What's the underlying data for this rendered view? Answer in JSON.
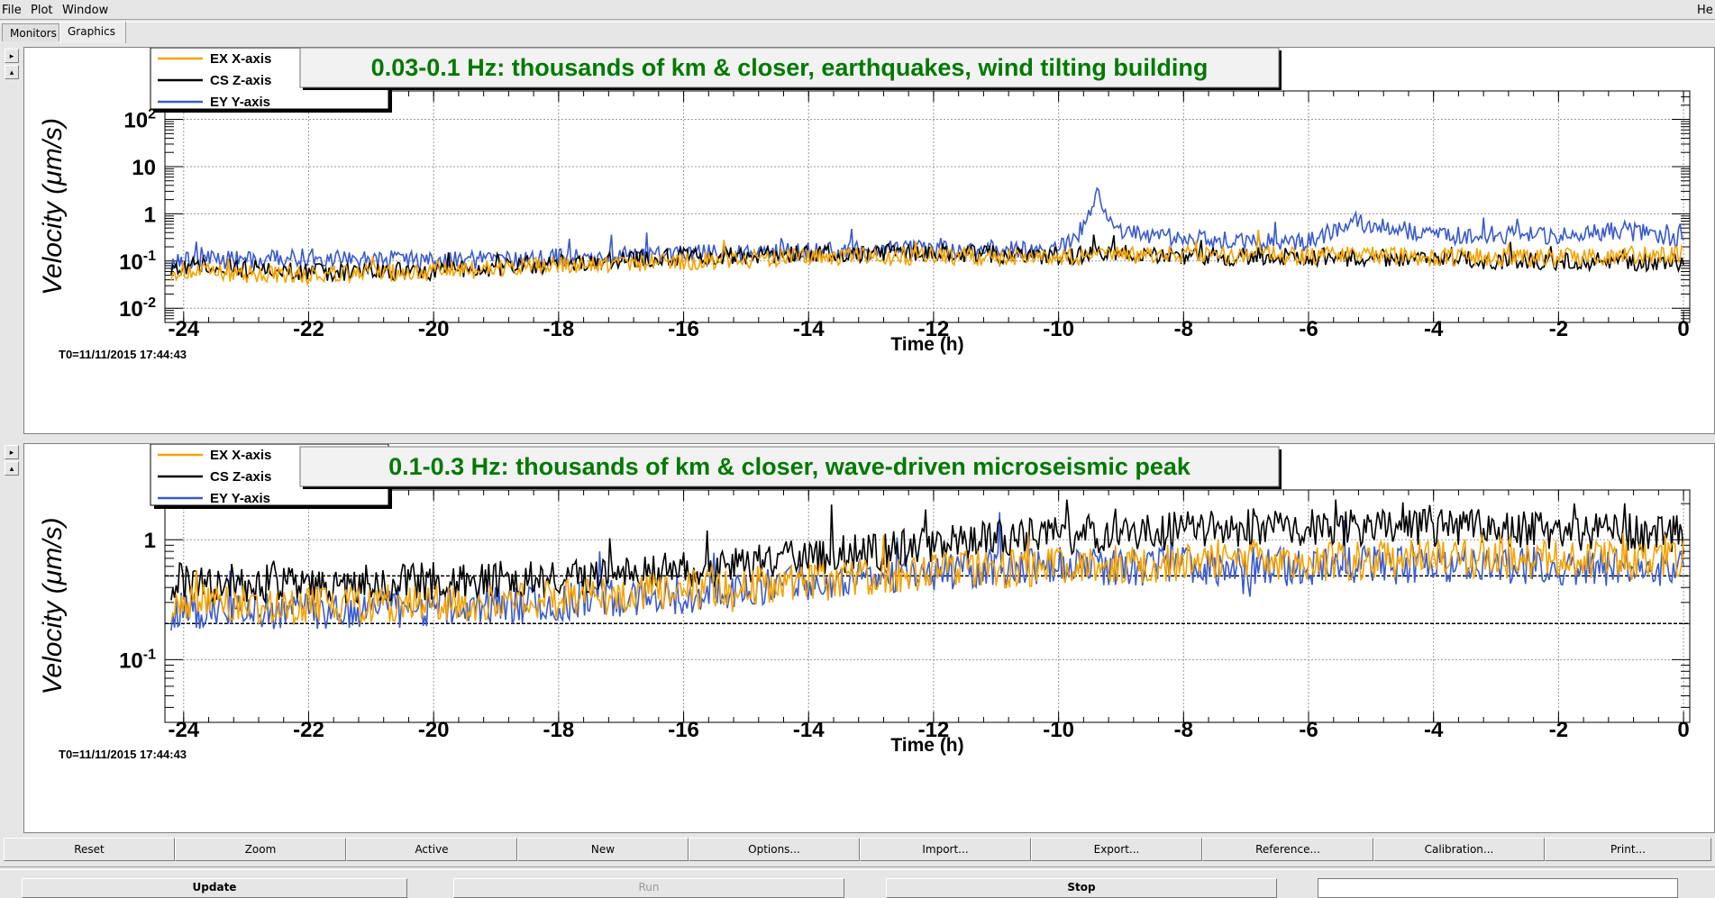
{
  "menu": {
    "file": "File",
    "plot": "Plot",
    "window": "Window",
    "help": "He"
  },
  "tabs": {
    "monitors": "Monitors",
    "graphics": "Graphics"
  },
  "colors": {
    "x_axis": "#f5a300",
    "z_axis": "#000000",
    "y_axis": "#3a5bcc",
    "title_green": "#007a00"
  },
  "plots": [
    {
      "title": "0.03-0.1 Hz: thousands of km & closer, earthquakes, wind tilting building",
      "ylabel": "Velocity  (μm/s)",
      "xlabel": "Time (h)",
      "t0": "T0=11/11/2015 17:44:43",
      "legend": [
        "EX X-axis",
        "CS Z-axis",
        "EY Y-axis"
      ],
      "yticks": [
        {
          "base": "10",
          "exp": "-2"
        },
        {
          "base": "10",
          "exp": "-1"
        },
        {
          "base": "1",
          "exp": ""
        },
        {
          "base": "10",
          "exp": ""
        },
        {
          "base": "10",
          "exp": "2"
        }
      ],
      "xticks": [
        "-24",
        "-22",
        "-20",
        "-18",
        "-16",
        "-14",
        "-12",
        "-10",
        "-8",
        "-6",
        "-4",
        "-2",
        "0"
      ]
    },
    {
      "title": "0.1-0.3 Hz: thousands of km & closer, wave-driven microseismic peak",
      "ylabel": "Velocity  (μm/s)",
      "xlabel": "Time (h)",
      "t0": "T0=11/11/2015 17:44:43",
      "legend": [
        "EX X-axis",
        "CS Z-axis",
        "EY Y-axis"
      ],
      "yticks": [
        {
          "base": "10",
          "exp": "-1"
        },
        {
          "base": "1",
          "exp": ""
        }
      ],
      "xticks": [
        "-24",
        "-22",
        "-20",
        "-18",
        "-16",
        "-14",
        "-12",
        "-10",
        "-8",
        "-6",
        "-4",
        "-2",
        "0"
      ]
    }
  ],
  "chart_data": [
    {
      "type": "line",
      "title": "0.03-0.1 Hz: thousands of km & closer, earthquakes, wind tilting building",
      "xlabel": "Time (h)",
      "ylabel": "Velocity  (μm/s)",
      "xlim": [
        -24.3,
        0.1
      ],
      "ylim": [
        0.005,
        400
      ],
      "yscale": "log",
      "grid": true,
      "legend_position": "top-left",
      "x": [
        -24,
        -22,
        -20,
        -18,
        -16,
        -14,
        -12,
        -10,
        -9.6,
        -9.4,
        -9,
        -8,
        -6,
        -5.3,
        -4,
        -2,
        -1,
        0
      ],
      "series": [
        {
          "name": "EX X-axis",
          "values": [
            0.06,
            0.05,
            0.06,
            0.08,
            0.1,
            0.12,
            0.13,
            0.12,
            0.12,
            0.13,
            0.13,
            0.14,
            0.13,
            0.14,
            0.12,
            0.12,
            0.13,
            0.14
          ]
        },
        {
          "name": "CS Z-axis",
          "values": [
            0.08,
            0.06,
            0.06,
            0.09,
            0.12,
            0.14,
            0.15,
            0.13,
            0.13,
            0.14,
            0.14,
            0.13,
            0.12,
            0.12,
            0.11,
            0.1,
            0.1,
            0.09
          ]
        },
        {
          "name": "EY Y-axis",
          "values": [
            0.1,
            0.12,
            0.1,
            0.12,
            0.14,
            0.16,
            0.18,
            0.17,
            0.5,
            2.5,
            0.4,
            0.3,
            0.25,
            0.7,
            0.35,
            0.35,
            0.45,
            0.3
          ]
        }
      ]
    },
    {
      "type": "line",
      "title": "0.1-0.3 Hz: thousands of km & closer, wave-driven microseismic peak",
      "xlabel": "Time (h)",
      "ylabel": "Velocity  (μm/s)",
      "xlim": [
        -24.3,
        0.1
      ],
      "ylim": [
        0.03,
        2.6
      ],
      "yscale": "log",
      "grid": true,
      "legend_position": "top-left",
      "x": [
        -24,
        -22,
        -20,
        -18,
        -16,
        -14,
        -12,
        -10,
        -8,
        -6,
        -4,
        -2,
        0
      ],
      "series": [
        {
          "name": "EX X-axis",
          "values": [
            0.3,
            0.28,
            0.3,
            0.32,
            0.38,
            0.45,
            0.55,
            0.6,
            0.65,
            0.65,
            0.7,
            0.68,
            0.65
          ]
        },
        {
          "name": "CS Z-axis",
          "values": [
            0.45,
            0.42,
            0.45,
            0.48,
            0.55,
            0.7,
            0.9,
            1.1,
            1.2,
            1.3,
            1.25,
            1.2,
            1.1
          ]
        },
        {
          "name": "EY Y-axis",
          "values": [
            0.25,
            0.25,
            0.27,
            0.3,
            0.35,
            0.45,
            0.55,
            0.6,
            0.6,
            0.6,
            0.62,
            0.6,
            0.6
          ]
        }
      ]
    }
  ],
  "buttons_row1": [
    "Reset",
    "Zoom",
    "Active",
    "New",
    "Options...",
    "Import...",
    "Export...",
    "Reference...",
    "Calibration...",
    "Print..."
  ],
  "buttons_row2": {
    "update": "Update",
    "run": "Run",
    "stop": "Stop"
  }
}
